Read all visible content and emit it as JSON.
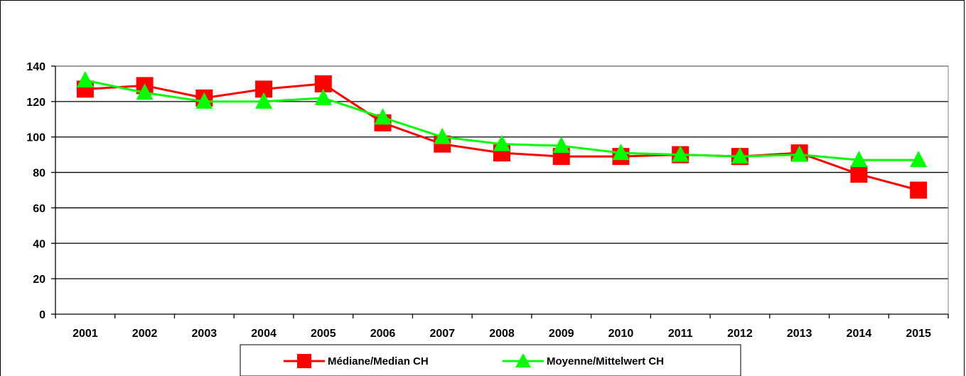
{
  "chart_data": {
    "type": "line",
    "title": "",
    "xlabel": "",
    "ylabel": "",
    "categories": [
      "2001",
      "2002",
      "2003",
      "2004",
      "2005",
      "2006",
      "2007",
      "2008",
      "2009",
      "2010",
      "2011",
      "2012",
      "2013",
      "2014",
      "2015"
    ],
    "yticks": [
      "0",
      "20",
      "40",
      "60",
      "80",
      "100",
      "120",
      "140"
    ],
    "ylim": [
      0,
      140
    ],
    "grid": true,
    "legend_position": "bottom",
    "series": [
      {
        "name": "Médiane/Median CH",
        "color": "#ff0000",
        "marker": "square",
        "values": [
          127,
          129,
          122,
          127,
          130,
          108,
          96,
          91,
          89,
          89,
          90,
          89,
          91,
          79,
          70
        ]
      },
      {
        "name": "Moyenne/Mittelwert CH",
        "color": "#00ff00",
        "marker": "triangle",
        "values": [
          132,
          125,
          120,
          120,
          122,
          111,
          100,
          96,
          95,
          91,
          90,
          89,
          90,
          87,
          87
        ]
      }
    ]
  }
}
